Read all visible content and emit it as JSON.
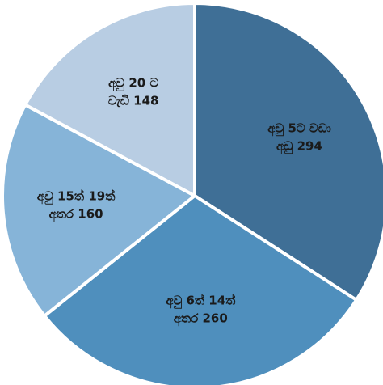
{
  "chart_data": {
    "type": "pie",
    "title": "",
    "slices": [
      {
        "line1": "අවු 5ට වඩා",
        "line2": "අඩු 294",
        "value": 294,
        "color": "#3f6f96"
      },
      {
        "line1": "අවු 6ත් 14ත්",
        "line2": "අතර 260",
        "value": 260,
        "color": "#4f8fbd"
      },
      {
        "line1": "අවු 15ත් 19ත්",
        "line2": "අතර 160",
        "value": 160,
        "color": "#86b4d8"
      },
      {
        "line1": "අවු 20 ට",
        "line2": "වැඩි 148",
        "value": 148,
        "color": "#b8cde3"
      }
    ],
    "start_at": "12 o'clock",
    "direction": "clockwise",
    "legend": "none"
  }
}
